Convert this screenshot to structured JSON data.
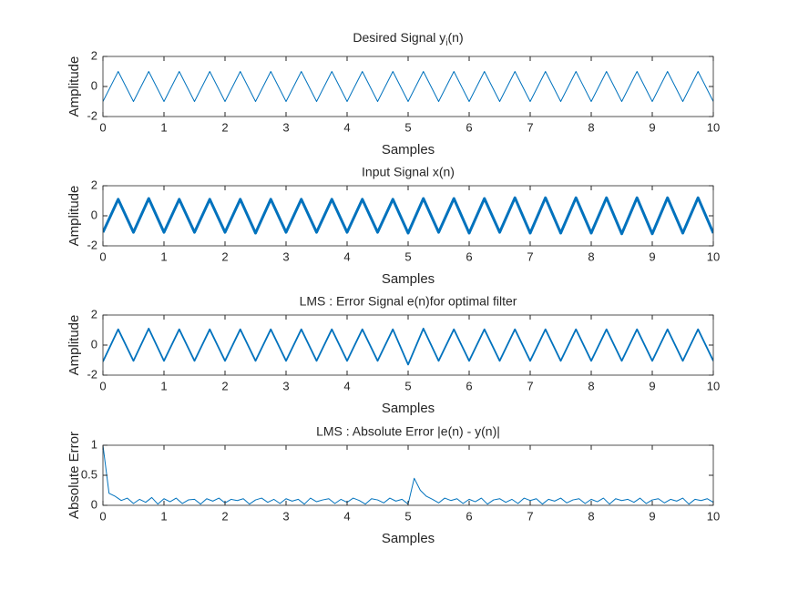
{
  "chart_data": [
    {
      "type": "line",
      "title": [
        "Desired Signal y",
        "i",
        "(n)"
      ],
      "xlabel": "Samples",
      "ylabel": "Amplitude",
      "xlim": [
        0,
        10
      ],
      "ylim": [
        -2,
        2
      ],
      "xticks": [
        0,
        1,
        2,
        3,
        4,
        5,
        6,
        7,
        8,
        9,
        10
      ],
      "yticks": [
        -2,
        0,
        2
      ],
      "x": [
        0,
        0.25,
        0.5,
        0.75,
        1,
        1.25,
        1.5,
        1.75,
        2,
        2.25,
        2.5,
        2.75,
        3,
        3.25,
        3.5,
        3.75,
        4,
        4.25,
        4.5,
        4.75,
        5,
        5.25,
        5.5,
        5.75,
        6,
        6.25,
        6.5,
        6.75,
        7,
        7.25,
        7.5,
        7.75,
        8,
        8.25,
        8.5,
        8.75,
        9,
        9.25,
        9.5,
        9.75,
        10
      ],
      "series": [
        {
          "color": "#0072bd",
          "width": 1,
          "values": [
            -1,
            1,
            -1,
            1,
            -1,
            1,
            -1,
            1,
            -1,
            1,
            -1,
            1,
            -1,
            1,
            -1,
            1,
            -1,
            1,
            -1,
            1,
            -1,
            1,
            -1,
            1,
            -1,
            1,
            -1,
            1,
            -1,
            1,
            -1,
            1,
            -1,
            1,
            -1,
            1,
            -1,
            1,
            -1,
            1,
            -1
          ]
        }
      ]
    },
    {
      "type": "line",
      "title": "Input Signal x(n)",
      "xlabel": "Samples",
      "ylabel": "Amplitude",
      "xlim": [
        0,
        10
      ],
      "ylim": [
        -2,
        2
      ],
      "xticks": [
        0,
        1,
        2,
        3,
        4,
        5,
        6,
        7,
        8,
        9,
        10
      ],
      "yticks": [
        -2,
        0,
        2
      ],
      "x": [
        0,
        0.25,
        0.5,
        0.75,
        1,
        1.25,
        1.5,
        1.75,
        2,
        2.25,
        2.5,
        2.75,
        3,
        3.25,
        3.5,
        3.75,
        4,
        4.25,
        4.5,
        4.75,
        5,
        5.25,
        5.5,
        5.75,
        6,
        6.25,
        6.5,
        6.75,
        7,
        7.25,
        7.5,
        7.75,
        8,
        8.25,
        8.5,
        8.75,
        9,
        9.25,
        9.5,
        9.75,
        10
      ],
      "series": [
        {
          "color": "#0072bd",
          "width": 3,
          "values": [
            -1.1,
            1.1,
            -1.1,
            1.15,
            -1.1,
            1.1,
            -1.1,
            1.1,
            -1.1,
            1.1,
            -1.15,
            1.1,
            -1.1,
            1.1,
            -1.1,
            1.1,
            -1.1,
            1.1,
            -1.1,
            1.1,
            -1.15,
            1.15,
            -1.1,
            1.15,
            -1.15,
            1.15,
            -1.1,
            1.2,
            -1.15,
            1.2,
            -1.15,
            1.2,
            -1.15,
            1.2,
            -1.2,
            1.2,
            -1.2,
            1.2,
            -1.15,
            1.2,
            -1.15
          ]
        }
      ]
    },
    {
      "type": "line",
      "title": "LMS : Error Signal e(n)for optimal filter",
      "xlabel": "Samples",
      "ylabel": "Amplitude",
      "xlim": [
        0,
        10
      ],
      "ylim": [
        -2,
        2
      ],
      "xticks": [
        0,
        1,
        2,
        3,
        4,
        5,
        6,
        7,
        8,
        9,
        10
      ],
      "yticks": [
        -2,
        0,
        2
      ],
      "x": [
        0,
        0.25,
        0.5,
        0.75,
        1,
        1.25,
        1.5,
        1.75,
        2,
        2.25,
        2.5,
        2.75,
        3,
        3.25,
        3.5,
        3.75,
        4,
        4.25,
        4.5,
        4.75,
        5,
        5.25,
        5.5,
        5.75,
        6,
        6.25,
        6.5,
        6.75,
        7,
        7.25,
        7.5,
        7.75,
        8,
        8.25,
        8.5,
        8.75,
        9,
        9.25,
        9.5,
        9.75,
        10
      ],
      "series": [
        {
          "color": "#0072bd",
          "width": 1.8,
          "values": [
            -1.1,
            1.05,
            -1.05,
            1.1,
            -1.05,
            1.05,
            -1.05,
            1.05,
            -1.05,
            1.05,
            -1.05,
            1.05,
            -1.05,
            1.05,
            -1.05,
            1.05,
            -1.05,
            1.05,
            -1.05,
            1.05,
            -1.3,
            1.1,
            -1.05,
            1.05,
            -1.05,
            1.05,
            -1.05,
            1.05,
            -1.05,
            1.05,
            -1.05,
            1.05,
            -1.05,
            1.05,
            -1.05,
            1.05,
            -1.05,
            1.05,
            -1.05,
            1.05,
            -1.05
          ]
        }
      ]
    },
    {
      "type": "line",
      "title": "LMS : Absolute Error |e(n) - y(n)|",
      "xlabel": "Samples",
      "ylabel": "Absolute Error",
      "xlim": [
        0,
        10
      ],
      "ylim": [
        0,
        1
      ],
      "xticks": [
        0,
        1,
        2,
        3,
        4,
        5,
        6,
        7,
        8,
        9,
        10
      ],
      "yticks": [
        0,
        0.5,
        1
      ],
      "x": [
        0,
        0.1,
        0.2,
        0.3,
        0.4,
        0.5,
        0.6,
        0.7,
        0.8,
        0.9,
        1,
        1.1,
        1.2,
        1.3,
        1.4,
        1.5,
        1.6,
        1.7,
        1.8,
        1.9,
        2,
        2.1,
        2.2,
        2.3,
        2.4,
        2.5,
        2.6,
        2.7,
        2.8,
        2.9,
        3,
        3.1,
        3.2,
        3.3,
        3.4,
        3.5,
        3.6,
        3.7,
        3.8,
        3.9,
        4,
        4.1,
        4.2,
        4.3,
        4.4,
        4.5,
        4.6,
        4.7,
        4.8,
        4.9,
        5,
        5.1,
        5.2,
        5.3,
        5.4,
        5.5,
        5.6,
        5.7,
        5.8,
        5.9,
        6,
        6.1,
        6.2,
        6.3,
        6.4,
        6.5,
        6.6,
        6.7,
        6.8,
        6.9,
        7,
        7.1,
        7.2,
        7.3,
        7.4,
        7.5,
        7.6,
        7.7,
        7.8,
        7.9,
        8,
        8.1,
        8.2,
        8.3,
        8.4,
        8.5,
        8.6,
        8.7,
        8.8,
        8.9,
        9,
        9.1,
        9.2,
        9.3,
        9.4,
        9.5,
        9.6,
        9.7,
        9.8,
        9.9,
        10
      ],
      "series": [
        {
          "color": "#0072bd",
          "width": 1,
          "values": [
            1,
            0.2,
            0.15,
            0.08,
            0.12,
            0.03,
            0.1,
            0.05,
            0.13,
            0.02,
            0.11,
            0.06,
            0.12,
            0.03,
            0.09,
            0.1,
            0.02,
            0.11,
            0.07,
            0.12,
            0.04,
            0.1,
            0.08,
            0.11,
            0.02,
            0.09,
            0.12,
            0.05,
            0.1,
            0.03,
            0.11,
            0.07,
            0.1,
            0.02,
            0.12,
            0.06,
            0.09,
            0.11,
            0.03,
            0.1,
            0.05,
            0.12,
            0.08,
            0.02,
            0.11,
            0.09,
            0.04,
            0.12,
            0.07,
            0.1,
            0.02,
            0.45,
            0.25,
            0.15,
            0.1,
            0.04,
            0.12,
            0.08,
            0.11,
            0.03,
            0.1,
            0.06,
            0.12,
            0.02,
            0.09,
            0.11,
            0.05,
            0.1,
            0.03,
            0.12,
            0.08,
            0.11,
            0.02,
            0.1,
            0.07,
            0.12,
            0.04,
            0.09,
            0.11,
            0.03,
            0.1,
            0.06,
            0.12,
            0.02,
            0.11,
            0.08,
            0.1,
            0.05,
            0.12,
            0.03,
            0.09,
            0.11,
            0.04,
            0.1,
            0.07,
            0.12,
            0.02,
            0.1,
            0.08,
            0.11,
            0.05
          ]
        }
      ]
    }
  ]
}
